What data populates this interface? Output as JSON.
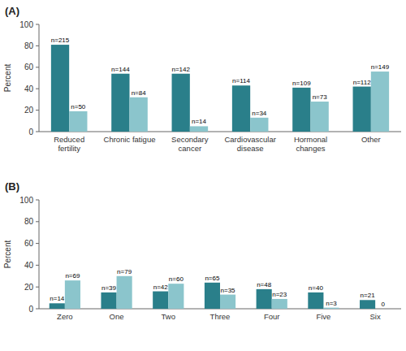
{
  "chart_data": [
    {
      "type": "bar",
      "title": "(A)",
      "y_label": "Percent",
      "categories": [
        "Reduced\nfertility",
        "Chronic fatigue",
        "Secondary\ncancer",
        "Cardiovascular\ndisease",
        "Hormonal\nchanges",
        "Other"
      ],
      "series": [
        {
          "color": "#2a7f8a",
          "values": [
            81,
            54,
            54,
            43,
            41,
            42
          ],
          "n_labels": [
            "n=215",
            "n=144",
            "n=142",
            "n=114",
            "n=109",
            "n=112"
          ]
        },
        {
          "color": "#8bc5cc",
          "values": [
            19,
            32,
            5,
            13,
            28,
            56
          ],
          "n_labels": [
            "n=50",
            "n=84",
            "n=14",
            "n=34",
            "n=73",
            "n=149"
          ]
        }
      ],
      "ylim": [
        0,
        100
      ],
      "yticks": [
        0,
        20,
        40,
        60,
        80,
        100
      ]
    },
    {
      "type": "bar",
      "title": "(B)",
      "y_label": "Percent",
      "categories": [
        "Zero",
        "One",
        "Two",
        "Three",
        "Four",
        "Five",
        "Six"
      ],
      "series": [
        {
          "color": "#2a7f8a",
          "values": [
            5,
            15,
            16,
            24,
            18,
            15,
            8
          ],
          "n_labels": [
            "n=14",
            "n=39",
            "n=42",
            "n=65",
            "n=48",
            "n=40",
            "n=21"
          ]
        },
        {
          "color": "#8bc5cc",
          "values": [
            26,
            30,
            23,
            13,
            9,
            1,
            0
          ],
          "n_labels": [
            "n=69",
            "n=79",
            "n=60",
            "n=35",
            "n=23",
            "n=3",
            "0"
          ]
        }
      ],
      "ylim": [
        0,
        100
      ],
      "yticks": [
        0,
        20,
        40,
        60,
        80,
        100
      ]
    }
  ]
}
